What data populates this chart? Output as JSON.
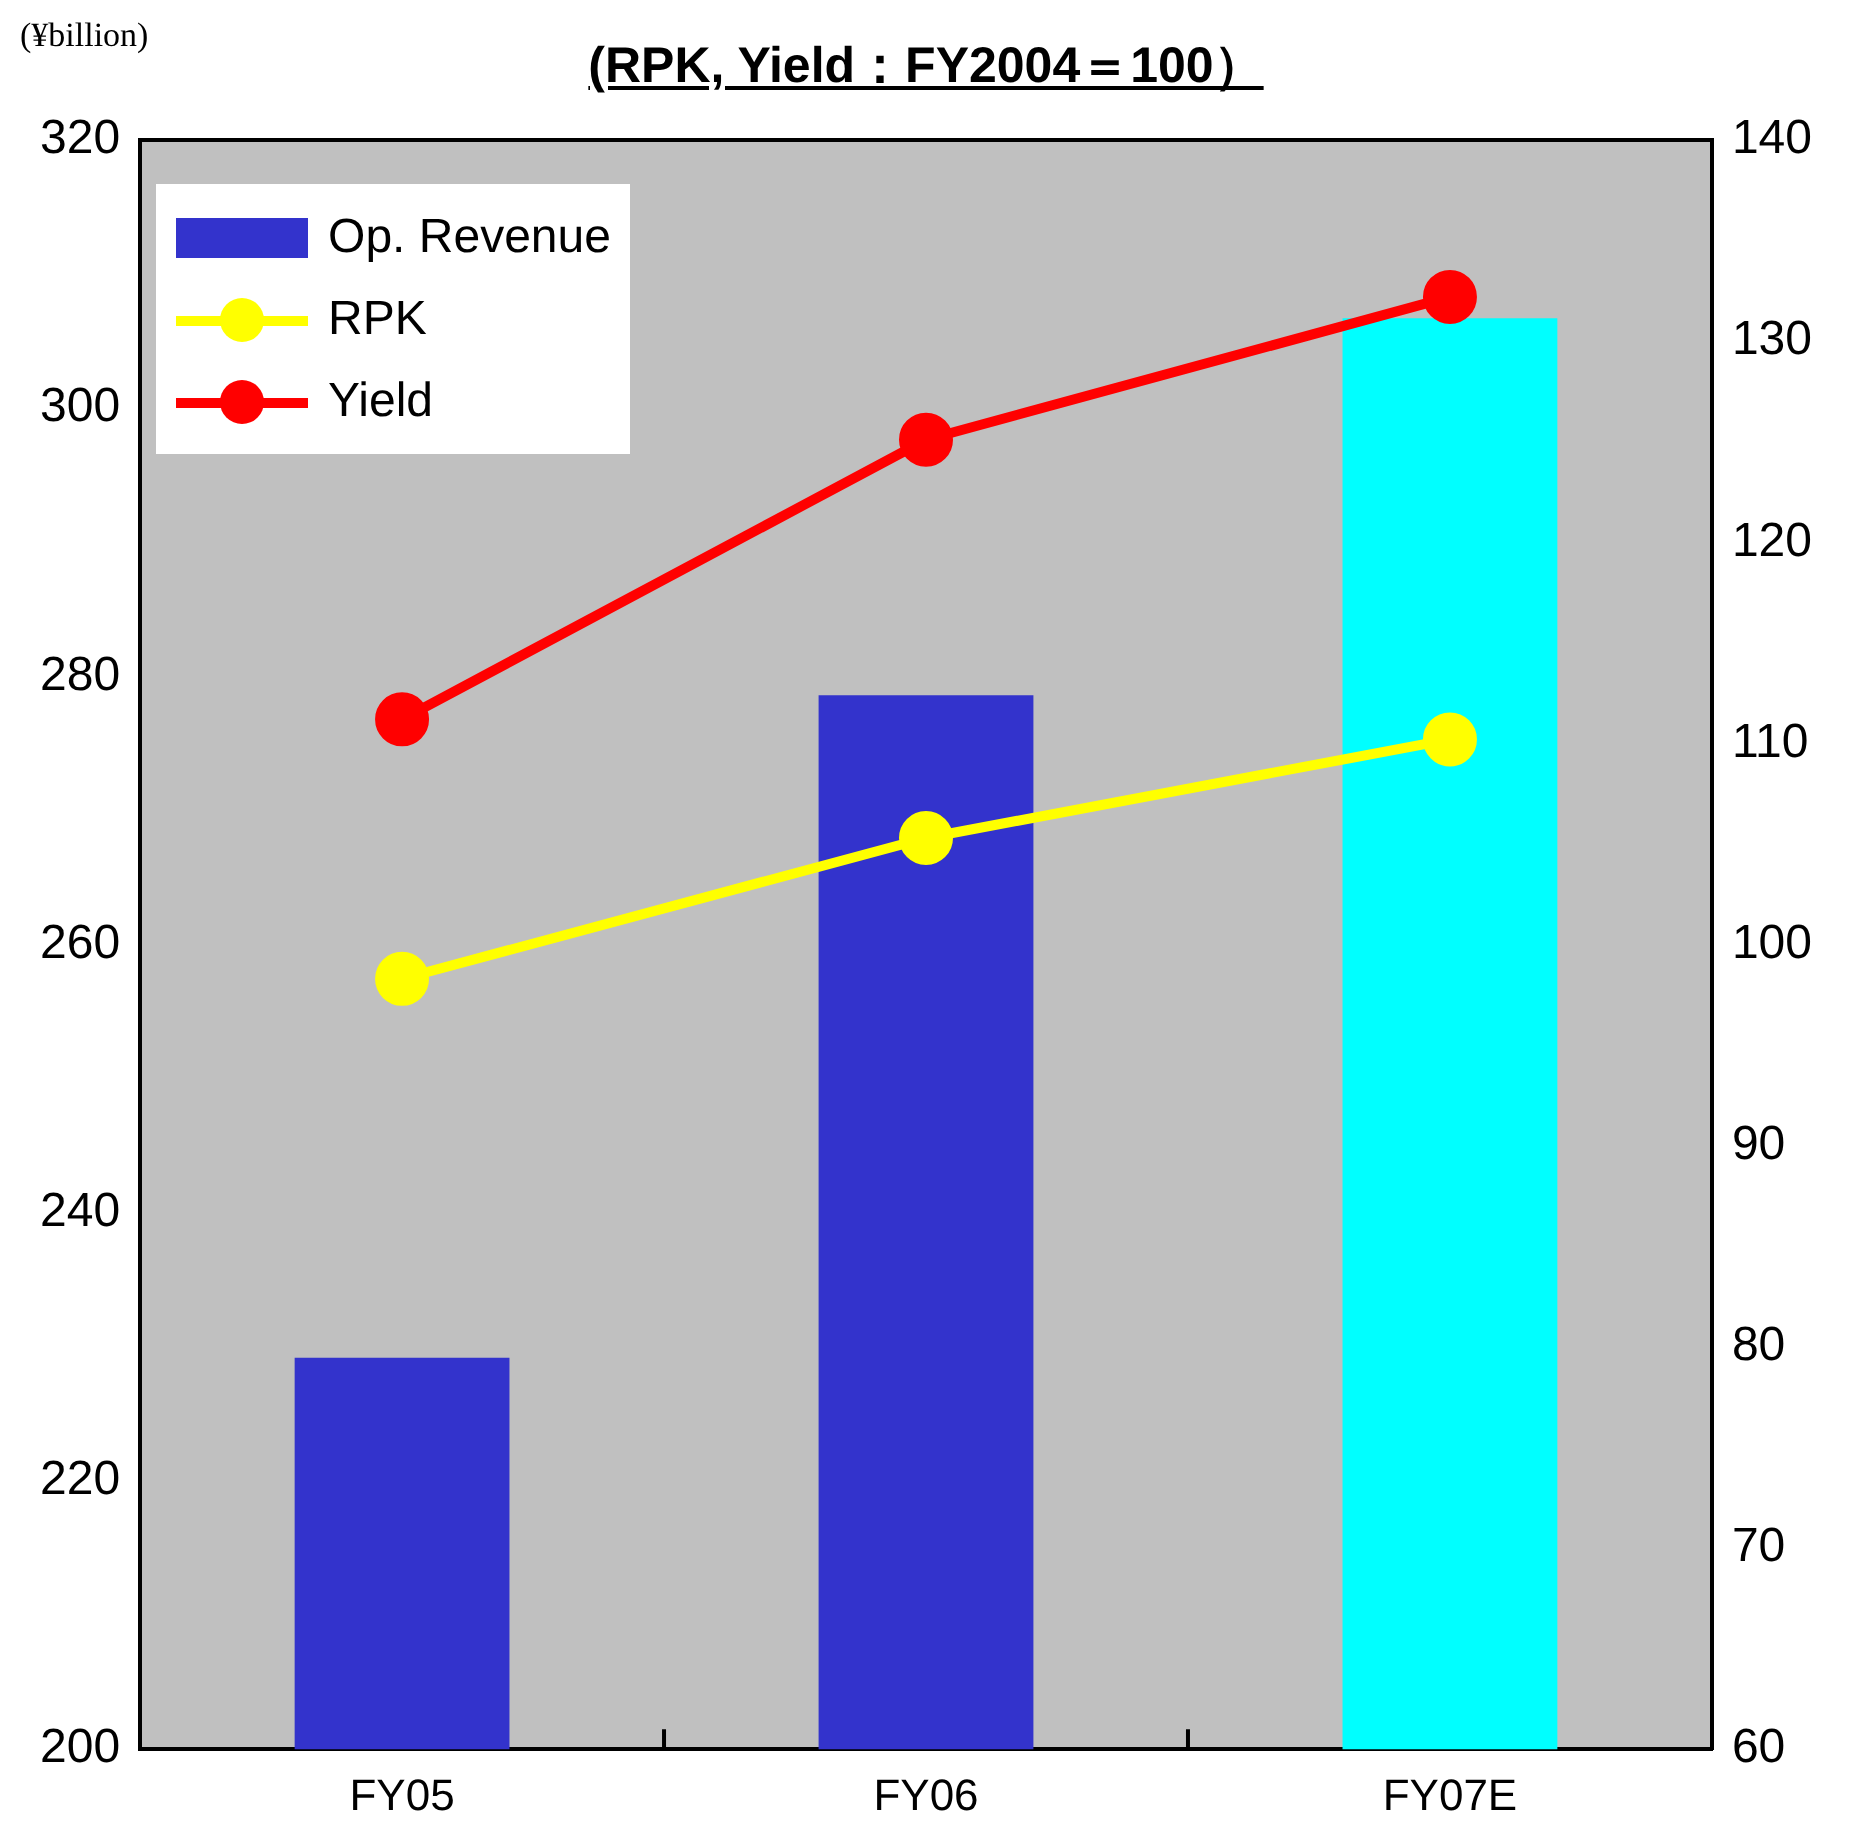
{
  "chart_data": {
    "type": "bar",
    "title": "(RPK, Yield：FY2004＝100）",
    "ylabel": "(¥billion)",
    "categories": [
      "FY05",
      "FY06",
      "FY07E"
    ],
    "series": [
      {
        "name": "Op. Revenue",
        "colors": [
          "#3333cc",
          "#3333cc",
          "#00ffff"
        ],
        "values": [
          229.2,
          278.6,
          306.7
        ]
      },
      {
        "name": "RPK",
        "type": "line",
        "axis": "y2",
        "color": "#ffff00",
        "values": [
          98.3,
          105.3,
          110.2
        ]
      },
      {
        "name": "Yield",
        "type": "line",
        "axis": "y2",
        "color": "#ff0000",
        "values": [
          111.2,
          125.1,
          132.2
        ]
      }
    ],
    "ylim": [
      200,
      320
    ],
    "yticks": [
      200,
      220,
      240,
      260,
      280,
      300,
      320
    ],
    "y2lim": [
      60,
      140
    ],
    "y2ticks": [
      60,
      70,
      80,
      90,
      100,
      110,
      120,
      130,
      140
    ],
    "legend": "top left",
    "marker": "circle",
    "grid": false
  }
}
